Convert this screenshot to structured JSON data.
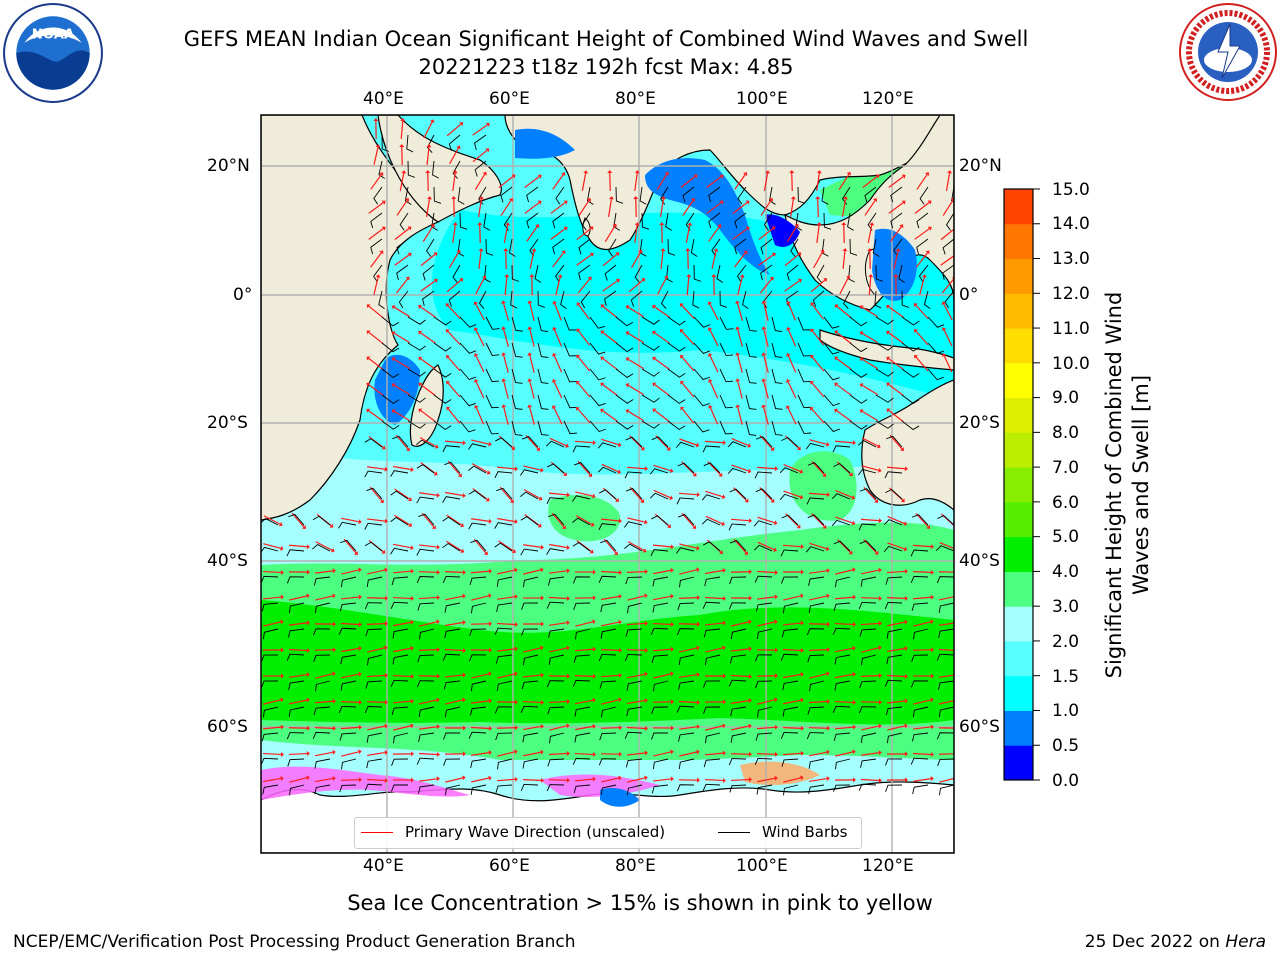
{
  "title": {
    "line1": "GEFS MEAN Indian Ocean Significant Height of Combined Wind Waves and Swell",
    "line2": "20221223 t18z 192h fcst   Max: 4.85"
  },
  "logos": {
    "left": "noaa-logo",
    "right": "nws-logo"
  },
  "map": {
    "lon_labels": [
      "40°E",
      "60°E",
      "80°E",
      "100°E",
      "120°E"
    ],
    "lat_labels": [
      "20°N",
      "0°",
      "20°S",
      "40°S",
      "60°S"
    ],
    "colors": {
      "land": "#efedda",
      "ice": "#ffffff",
      "grid": "#b0b0b0",
      "arrow": "#ff1a1a",
      "barb": "#000000"
    }
  },
  "colorbar": {
    "title": "Significant Height of Combined Wind Waves and Swell [m]",
    "labels": [
      "15.0",
      "14.0",
      "13.0",
      "12.0",
      "11.0",
      "10.0",
      "9.0",
      "8.0",
      "7.0",
      "6.0",
      "5.0",
      "4.0",
      "3.0",
      "2.0",
      "1.5",
      "1.0",
      "0.5",
      "0.0"
    ],
    "colors": [
      "#0000ff",
      "#0080ff",
      "#00ffff",
      "#57ffff",
      "#a6ffff",
      "#4dff80",
      "#00ee00",
      "#55ee00",
      "#88ee00",
      "#bbee00",
      "#ddee00",
      "#ffff00",
      "#ffdd00",
      "#ffbb00",
      "#ff9900",
      "#ff7700",
      "#ff4400"
    ]
  },
  "legend": {
    "wave_direction": "Primary Wave Direction (unscaled)",
    "wind_barbs": "Wind Barbs",
    "wave_color": "#ff0000",
    "barb_color": "#000000"
  },
  "note": "Sea Ice Concentration > 15% is shown in pink to yellow",
  "footer": {
    "left": "NCEP/EMC/Verification Post Processing Product Generation Branch",
    "right_date": "25 Dec 2022 on ",
    "right_host": "Hera"
  }
}
